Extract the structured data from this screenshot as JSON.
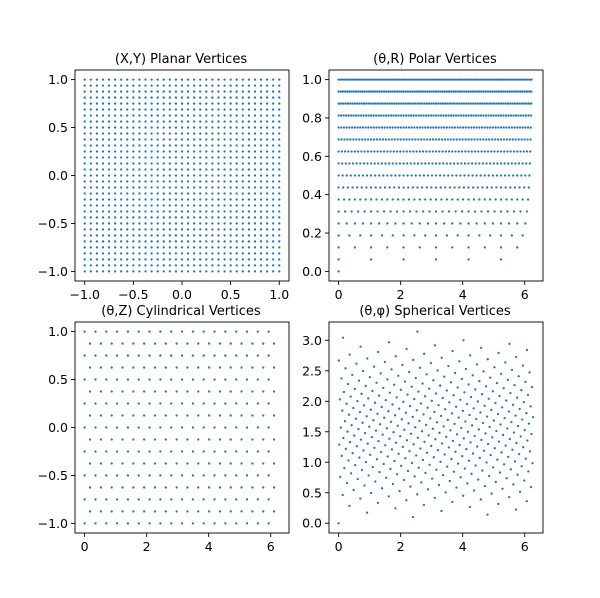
{
  "figure": {
    "background": "#ffffff",
    "marker_color": "#1f77b4"
  },
  "chart_data": [
    {
      "type": "scatter",
      "name": "planar",
      "title": "(X,Y) Planar Vertices",
      "xlabel": "",
      "ylabel": "",
      "xlim": [
        -1.1,
        1.1
      ],
      "ylim": [
        -1.1,
        1.1
      ],
      "xticks": [
        -1.0,
        -0.5,
        0.0,
        0.5,
        1.0
      ],
      "xtick_labels": [
        "−1.0",
        "−0.5",
        "0.0",
        "0.5",
        "1.0"
      ],
      "yticks": [
        -1.0,
        -0.5,
        0.0,
        0.5,
        1.0
      ],
      "ytick_labels": [
        "−1.0",
        "−0.5",
        "0.0",
        "0.5",
        "1.0"
      ],
      "generator": {
        "kind": "grid",
        "x_range": [
          -1,
          1
        ],
        "y_range": [
          -1,
          1
        ],
        "n": 33
      }
    },
    {
      "type": "scatter",
      "name": "polar",
      "title": "(θ,R) Polar Vertices",
      "xlabel": "",
      "ylabel": "",
      "xlim": [
        -0.31,
        6.59
      ],
      "ylim": [
        -0.05,
        1.05
      ],
      "xticks": [
        0,
        2,
        4,
        6
      ],
      "xtick_labels": [
        "0",
        "2",
        "4",
        "6"
      ],
      "yticks": [
        0.0,
        0.2,
        0.4,
        0.6,
        0.8,
        1.0
      ],
      "ytick_labels": [
        "0.0",
        "0.2",
        "0.4",
        "0.6",
        "0.8",
        "1.0"
      ],
      "generator": {
        "kind": "polar",
        "rings": 16,
        "r_max": 1.0,
        "theta_max": 6.2832
      }
    },
    {
      "type": "scatter",
      "name": "cylindrical",
      "title": "(θ,Z) Cylindrical Vertices",
      "xlabel": "",
      "ylabel": "",
      "xlim": [
        -0.31,
        6.59
      ],
      "ylim": [
        -1.1,
        1.1
      ],
      "xticks": [
        0,
        2,
        4,
        6
      ],
      "xtick_labels": [
        "0",
        "2",
        "4",
        "6"
      ],
      "yticks": [
        -1.0,
        -0.5,
        0.0,
        0.5,
        1.0
      ],
      "ytick_labels": [
        "−1.0",
        "−0.5",
        "0.0",
        "0.5",
        "1.0"
      ],
      "generator": {
        "kind": "cylinder",
        "z_levels": 17,
        "points_per_level": 18,
        "theta_max": 6.2832
      }
    },
    {
      "type": "scatter",
      "name": "spherical",
      "title": "(θ,φ) Spherical Vertices",
      "xlabel": "",
      "ylabel": "",
      "xlim": [
        -0.31,
        6.59
      ],
      "ylim": [
        -0.16,
        3.3
      ],
      "xticks": [
        0,
        2,
        4,
        6
      ],
      "xtick_labels": [
        "0",
        "2",
        "4",
        "6"
      ],
      "yticks": [
        0.0,
        0.5,
        1.0,
        1.5,
        2.0,
        2.5,
        3.0
      ],
      "ytick_labels": [
        "0.0",
        "0.5",
        "1.0",
        "1.5",
        "2.0",
        "2.5",
        "3.0"
      ],
      "generator": {
        "kind": "sphere",
        "n": 400
      }
    }
  ]
}
